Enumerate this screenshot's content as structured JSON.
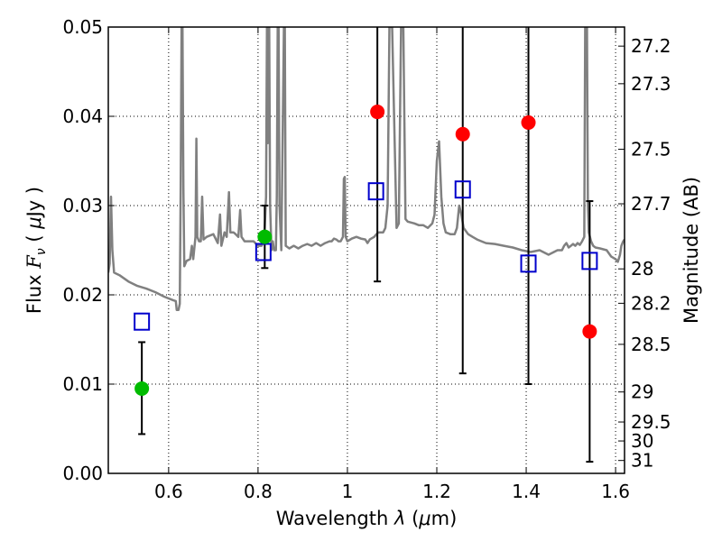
{
  "chart_data": {
    "type": "scatter",
    "xlabel": "Wavelength  λ (μm)",
    "ylabel": "Flux  F_ν  ( μJy )",
    "ylabel_parts": {
      "prefix": "Flux  ",
      "symbol": "F",
      "subscript": "ν",
      "unit_open": "  ( ",
      "unit_mu": "μ",
      "unit": "Jy )"
    },
    "xlabel_parts": {
      "prefix": "Wavelength  ",
      "symbol": "λ",
      "unit": " (",
      "unit_mu": "μ",
      "unit_end": "m)"
    },
    "y2label": "Magnitude (AB)",
    "xlim": [
      0.465,
      1.62
    ],
    "ylim": [
      0.0,
      0.05
    ],
    "grid": true,
    "x_ticks": [
      {
        "value": 0.6,
        "label": "0.6"
      },
      {
        "value": 0.8,
        "label": "0.8"
      },
      {
        "value": 1.0,
        "label": "1"
      },
      {
        "value": 1.2,
        "label": "1.2"
      },
      {
        "value": 1.4,
        "label": "1.4"
      },
      {
        "value": 1.6,
        "label": "1.6"
      }
    ],
    "y_ticks": [
      {
        "value": 0.0,
        "label": "0.00"
      },
      {
        "value": 0.01,
        "label": "0.01"
      },
      {
        "value": 0.02,
        "label": "0.02"
      },
      {
        "value": 0.03,
        "label": "0.03"
      },
      {
        "value": 0.04,
        "label": "0.04"
      },
      {
        "value": 0.05,
        "label": "0.05"
      }
    ],
    "y2_ticks": [
      {
        "value": 27.2,
        "label": "27.2"
      },
      {
        "value": 27.3,
        "label": "27.3"
      },
      {
        "value": 27.5,
        "label": "27.5"
      },
      {
        "value": 27.7,
        "label": "27.7"
      },
      {
        "value": 28.0,
        "label": "28"
      },
      {
        "value": 28.2,
        "label": "28.2"
      },
      {
        "value": 28.5,
        "label": "28.5"
      },
      {
        "value": 29.0,
        "label": "29"
      },
      {
        "value": 29.5,
        "label": "29.5"
      },
      {
        "value": 30.0,
        "label": "30"
      },
      {
        "value": 31.0,
        "label": "31"
      }
    ],
    "series": [
      {
        "name": "model spectrum",
        "kind": "line",
        "color": "#808080",
        "points": [
          [
            0.465,
            0.0225
          ],
          [
            0.468,
            0.0235
          ],
          [
            0.471,
            0.031
          ],
          [
            0.474,
            0.025
          ],
          [
            0.478,
            0.0225
          ],
          [
            0.49,
            0.0222
          ],
          [
            0.51,
            0.0215
          ],
          [
            0.53,
            0.021
          ],
          [
            0.55,
            0.0207
          ],
          [
            0.57,
            0.0203
          ],
          [
            0.59,
            0.0198
          ],
          [
            0.61,
            0.0194
          ],
          [
            0.616,
            0.0193
          ],
          [
            0.618,
            0.0183
          ],
          [
            0.622,
            0.0183
          ],
          [
            0.625,
            0.019
          ],
          [
            0.627,
            0.032
          ],
          [
            0.629,
            0.05
          ],
          [
            0.631,
            0.05
          ],
          [
            0.633,
            0.032
          ],
          [
            0.635,
            0.0232
          ],
          [
            0.64,
            0.0238
          ],
          [
            0.648,
            0.024
          ],
          [
            0.652,
            0.0255
          ],
          [
            0.655,
            0.024
          ],
          [
            0.66,
            0.0265
          ],
          [
            0.662,
            0.0375
          ],
          [
            0.664,
            0.0265
          ],
          [
            0.668,
            0.026
          ],
          [
            0.672,
            0.026
          ],
          [
            0.675,
            0.031
          ],
          [
            0.678,
            0.0262
          ],
          [
            0.685,
            0.0265
          ],
          [
            0.7,
            0.0268
          ],
          [
            0.71,
            0.0258
          ],
          [
            0.715,
            0.029
          ],
          [
            0.718,
            0.0255
          ],
          [
            0.725,
            0.027
          ],
          [
            0.73,
            0.0265
          ],
          [
            0.735,
            0.0315
          ],
          [
            0.738,
            0.027
          ],
          [
            0.745,
            0.027
          ],
          [
            0.75,
            0.0268
          ],
          [
            0.756,
            0.0265
          ],
          [
            0.76,
            0.0295
          ],
          [
            0.763,
            0.0265
          ],
          [
            0.77,
            0.026
          ],
          [
            0.78,
            0.026
          ],
          [
            0.79,
            0.026
          ],
          [
            0.8,
            0.0255
          ],
          [
            0.808,
            0.0255
          ],
          [
            0.812,
            0.026
          ],
          [
            0.815,
            0.0275
          ],
          [
            0.818,
            0.031
          ],
          [
            0.82,
            0.05
          ],
          [
            0.822,
            0.037
          ],
          [
            0.825,
            0.05
          ],
          [
            0.827,
            0.03
          ],
          [
            0.83,
            0.025
          ],
          [
            0.833,
            0.026
          ],
          [
            0.836,
            0.025
          ],
          [
            0.84,
            0.025
          ],
          [
            0.842,
            0.031
          ],
          [
            0.844,
            0.05
          ],
          [
            0.846,
            0.05
          ],
          [
            0.848,
            0.03
          ],
          [
            0.852,
            0.025
          ],
          [
            0.858,
            0.05
          ],
          [
            0.86,
            0.05
          ],
          [
            0.862,
            0.0255
          ],
          [
            0.87,
            0.0252
          ],
          [
            0.88,
            0.0255
          ],
          [
            0.89,
            0.0252
          ],
          [
            0.9,
            0.0255
          ],
          [
            0.91,
            0.0257
          ],
          [
            0.92,
            0.0255
          ],
          [
            0.93,
            0.0258
          ],
          [
            0.94,
            0.0255
          ],
          [
            0.95,
            0.0258
          ],
          [
            0.96,
            0.026
          ],
          [
            0.965,
            0.026
          ],
          [
            0.97,
            0.0263
          ],
          [
            0.975,
            0.0262
          ],
          [
            0.98,
            0.026
          ],
          [
            0.985,
            0.026
          ],
          [
            0.99,
            0.0265
          ],
          [
            0.992,
            0.033
          ],
          [
            0.994,
            0.0332
          ],
          [
            0.996,
            0.0265
          ],
          [
            1.0,
            0.026
          ],
          [
            1.01,
            0.0263
          ],
          [
            1.02,
            0.0265
          ],
          [
            1.03,
            0.0263
          ],
          [
            1.04,
            0.0262
          ],
          [
            1.045,
            0.0258
          ],
          [
            1.05,
            0.0262
          ],
          [
            1.06,
            0.0265
          ],
          [
            1.065,
            0.0268
          ],
          [
            1.07,
            0.027
          ],
          [
            1.08,
            0.027
          ],
          [
            1.085,
            0.0275
          ],
          [
            1.09,
            0.03
          ],
          [
            1.094,
            0.05
          ],
          [
            1.1,
            0.05
          ],
          [
            1.11,
            0.0275
          ],
          [
            1.115,
            0.028
          ],
          [
            1.12,
            0.05
          ],
          [
            1.125,
            0.05
          ],
          [
            1.13,
            0.0285
          ],
          [
            1.135,
            0.0282
          ],
          [
            1.15,
            0.028
          ],
          [
            1.16,
            0.0278
          ],
          [
            1.17,
            0.0278
          ],
          [
            1.18,
            0.0275
          ],
          [
            1.19,
            0.028
          ],
          [
            1.195,
            0.029
          ],
          [
            1.2,
            0.035
          ],
          [
            1.205,
            0.0372
          ],
          [
            1.21,
            0.031
          ],
          [
            1.215,
            0.028
          ],
          [
            1.22,
            0.027
          ],
          [
            1.23,
            0.0268
          ],
          [
            1.24,
            0.0268
          ],
          [
            1.245,
            0.0275
          ],
          [
            1.25,
            0.03
          ],
          [
            1.255,
            0.029
          ],
          [
            1.26,
            0.0275
          ],
          [
            1.27,
            0.0268
          ],
          [
            1.28,
            0.0265
          ],
          [
            1.29,
            0.0262
          ],
          [
            1.3,
            0.026
          ],
          [
            1.31,
            0.0258
          ],
          [
            1.33,
            0.0257
          ],
          [
            1.35,
            0.0255
          ],
          [
            1.37,
            0.0253
          ],
          [
            1.39,
            0.025
          ],
          [
            1.41,
            0.0248
          ],
          [
            1.43,
            0.025
          ],
          [
            1.45,
            0.0245
          ],
          [
            1.47,
            0.025
          ],
          [
            1.48,
            0.025
          ],
          [
            1.485,
            0.0255
          ],
          [
            1.49,
            0.0258
          ],
          [
            1.495,
            0.0253
          ],
          [
            1.5,
            0.0255
          ],
          [
            1.505,
            0.0257
          ],
          [
            1.51,
            0.0255
          ],
          [
            1.515,
            0.0258
          ],
          [
            1.52,
            0.0256
          ],
          [
            1.525,
            0.026
          ],
          [
            1.53,
            0.0265
          ],
          [
            1.532,
            0.05
          ],
          [
            1.536,
            0.05
          ],
          [
            1.538,
            0.03
          ],
          [
            1.54,
            0.027
          ],
          [
            1.545,
            0.026
          ],
          [
            1.55,
            0.0255
          ],
          [
            1.555,
            0.0253
          ],
          [
            1.565,
            0.0252
          ],
          [
            1.58,
            0.025
          ],
          [
            1.59,
            0.0243
          ],
          [
            1.6,
            0.024
          ],
          [
            1.605,
            0.0237
          ],
          [
            1.61,
            0.0245
          ],
          [
            1.613,
            0.0255
          ],
          [
            1.617,
            0.026
          ],
          [
            1.62,
            0.0262
          ]
        ]
      },
      {
        "name": "model photometry",
        "kind": "square",
        "color": "#0000cc",
        "points": [
          {
            "x": 0.54,
            "y": 0.017
          },
          {
            "x": 0.812,
            "y": 0.0248
          },
          {
            "x": 1.064,
            "y": 0.0316
          },
          {
            "x": 1.258,
            "y": 0.0318
          },
          {
            "x": 1.405,
            "y": 0.0235
          },
          {
            "x": 1.542,
            "y": 0.0238
          }
        ]
      },
      {
        "name": "measured (green)",
        "kind": "circle",
        "color": "#00bb00",
        "points": [
          {
            "x": 0.54,
            "y": 0.0095,
            "err_low": 0.0044,
            "err_high": 0.0147
          },
          {
            "x": 0.815,
            "y": 0.0265,
            "err_low": 0.023,
            "err_high": 0.03
          }
        ]
      },
      {
        "name": "measured (red)",
        "kind": "circle",
        "color": "#ff0000",
        "points": [
          {
            "x": 1.067,
            "y": 0.0405,
            "err_low": 0.0215,
            "err_high": 0.05
          },
          {
            "x": 1.258,
            "y": 0.038,
            "err_low": 0.0112,
            "err_high": 0.05
          },
          {
            "x": 1.405,
            "y": 0.0393,
            "err_low": 0.01,
            "err_high": 0.05
          },
          {
            "x": 1.542,
            "y": 0.0159,
            "err_low": 0.0013,
            "err_high": 0.0305
          }
        ]
      }
    ]
  }
}
